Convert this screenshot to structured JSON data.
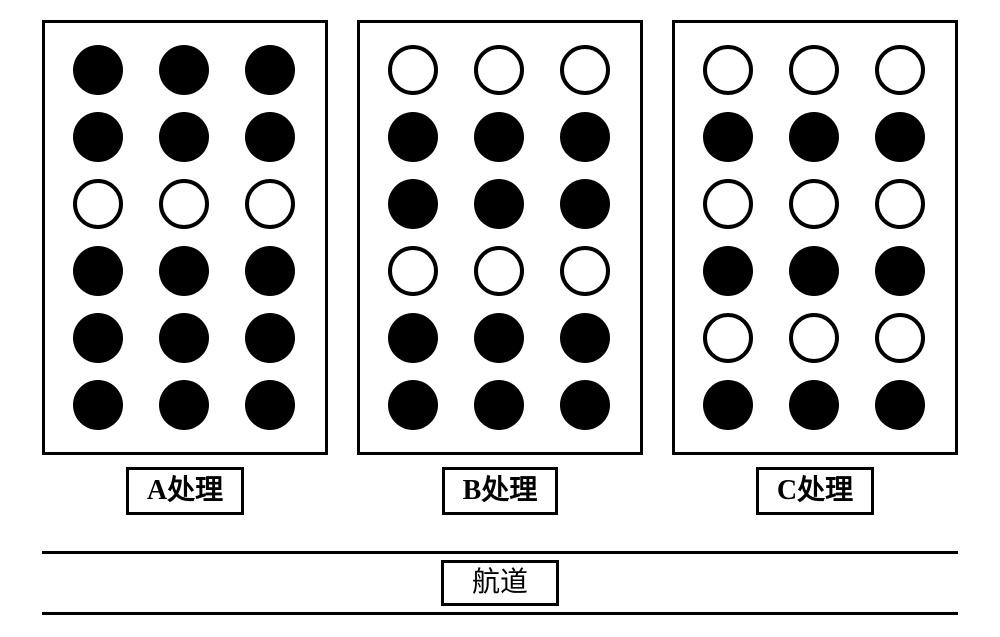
{
  "colors": {
    "border": "#000000",
    "fill": "#000000",
    "background": "#ffffff"
  },
  "dot": {
    "diameter": 50,
    "open_border_width": 4
  },
  "layout": {
    "grid_cols": 3,
    "grid_rows": 6,
    "col_gap": 36,
    "row_gap": 17,
    "panel_border_width": 3
  },
  "panels": [
    {
      "label": "A处理",
      "pattern": [
        [
          1,
          1,
          1
        ],
        [
          1,
          1,
          1
        ],
        [
          0,
          0,
          0
        ],
        [
          1,
          1,
          1
        ],
        [
          1,
          1,
          1
        ],
        [
          1,
          1,
          1
        ]
      ]
    },
    {
      "label": "B处理",
      "pattern": [
        [
          0,
          0,
          0
        ],
        [
          1,
          1,
          1
        ],
        [
          1,
          1,
          1
        ],
        [
          0,
          0,
          0
        ],
        [
          1,
          1,
          1
        ],
        [
          1,
          1,
          1
        ]
      ]
    },
    {
      "label": "C处理",
      "pattern": [
        [
          0,
          0,
          0
        ],
        [
          1,
          1,
          1
        ],
        [
          0,
          0,
          0
        ],
        [
          1,
          1,
          1
        ],
        [
          0,
          0,
          0
        ],
        [
          1,
          1,
          1
        ]
      ]
    }
  ],
  "lane_label": "航道"
}
